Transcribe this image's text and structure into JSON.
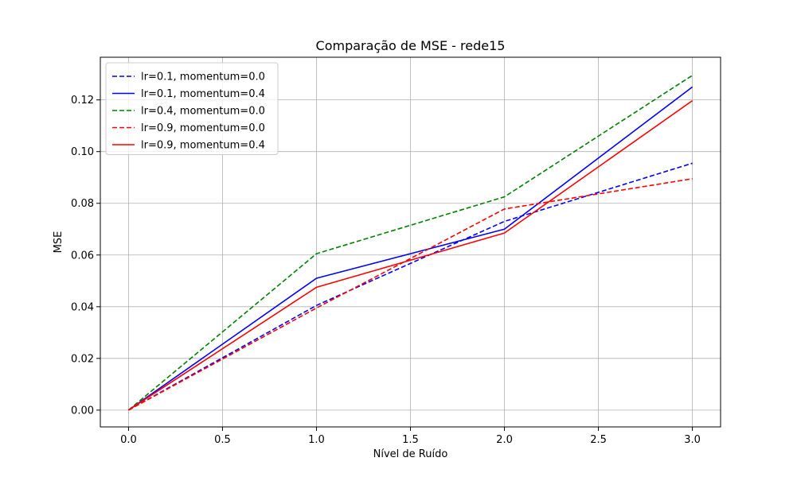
{
  "chart_data": {
    "type": "line",
    "title": "Comparação de MSE - rede15",
    "xlabel": "Nível de Ruído",
    "ylabel": "MSE",
    "xlim": [
      -0.15,
      3.15
    ],
    "ylim": [
      -0.0065,
      0.1365
    ],
    "x_ticks": [
      0.0,
      0.5,
      1.0,
      1.5,
      2.0,
      2.5,
      3.0
    ],
    "x_tick_labels": [
      "0.0",
      "0.5",
      "1.0",
      "1.5",
      "2.0",
      "2.5",
      "3.0"
    ],
    "y_ticks": [
      0.0,
      0.02,
      0.04,
      0.06,
      0.08,
      0.1,
      0.12
    ],
    "y_tick_labels": [
      "0.00",
      "0.02",
      "0.04",
      "0.06",
      "0.08",
      "0.10",
      "0.12"
    ],
    "grid": true,
    "legend_position": "top-left",
    "x": [
      0,
      1,
      2,
      3
    ],
    "series": [
      {
        "name": "lr=0.1, momentum=0.0",
        "color": "#0000ff",
        "style": "dashed",
        "values": [
          0.0,
          0.0405,
          0.073,
          0.0955
        ]
      },
      {
        "name": "lr=0.1, momentum=0.4",
        "color": "#0000ff",
        "style": "solid",
        "values": [
          0.0,
          0.051,
          0.07,
          0.125
        ]
      },
      {
        "name": "lr=0.4, momentum=0.0",
        "color": "#008000",
        "style": "dashed",
        "values": [
          0.0,
          0.0605,
          0.0825,
          0.1295
        ]
      },
      {
        "name": "lr=0.9, momentum=0.0",
        "color": "#ff0000",
        "style": "dashed",
        "values": [
          0.0,
          0.0395,
          0.0778,
          0.0895
        ]
      },
      {
        "name": "lr=0.9, momentum=0.4",
        "color": "#ff0000",
        "style": "solid",
        "values": [
          0.0,
          0.0475,
          0.0685,
          0.1197
        ]
      }
    ]
  }
}
